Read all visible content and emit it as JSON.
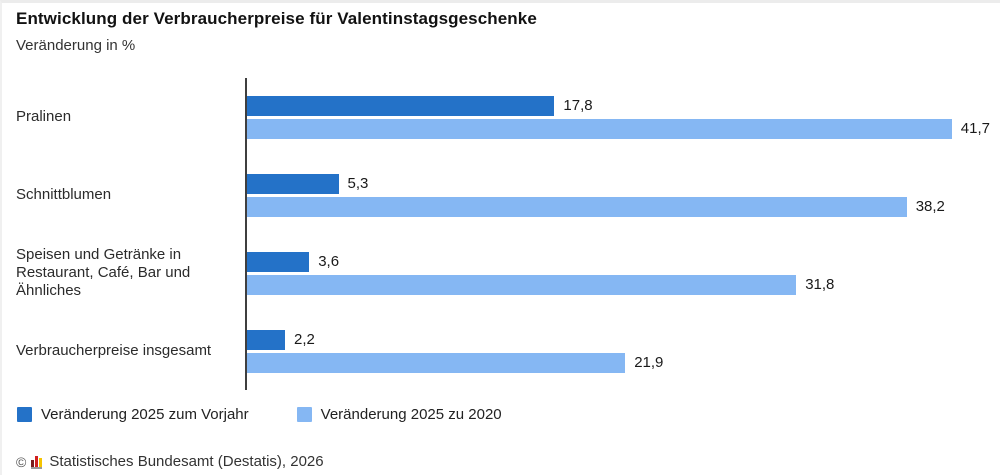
{
  "header": {
    "title": "Entwicklung der Verbraucherpreise für Valentinstagsgeschenke",
    "subtitle": "Veränderung in %"
  },
  "chart_data": {
    "type": "bar",
    "orientation": "horizontal",
    "title": "Entwicklung der Verbraucherpreise für Valentinstagsgeschenke",
    "ylabel": "Veränderung in %",
    "xlim": [
      0,
      43
    ],
    "grid": false,
    "legend_position": "bottom",
    "categories": [
      "Pralinen",
      "Schnittblumen",
      "Speisen und Getränke in\nRestaurant, Café, Bar und\nÄhnliches",
      "Verbraucherpreise insgesamt"
    ],
    "series": [
      {
        "name": "Veränderung 2025 zum Vorjahr",
        "values": [
          17.8,
          5.3,
          3.6,
          2.2
        ],
        "labels": [
          "17,8",
          "5,3",
          "3,6",
          "2,2"
        ],
        "color": "#2472C8"
      },
      {
        "name": "Veränderung 2025 zu 2020",
        "values": [
          41.7,
          38.2,
          31.8,
          21.9
        ],
        "labels": [
          "41,7",
          "38,2",
          "31,8",
          "21,9"
        ],
        "color": "#85B7F3"
      }
    ]
  },
  "footer": {
    "copyright_symbol": "©",
    "source": "Statistisches Bundesamt (Destatis), 2026"
  }
}
